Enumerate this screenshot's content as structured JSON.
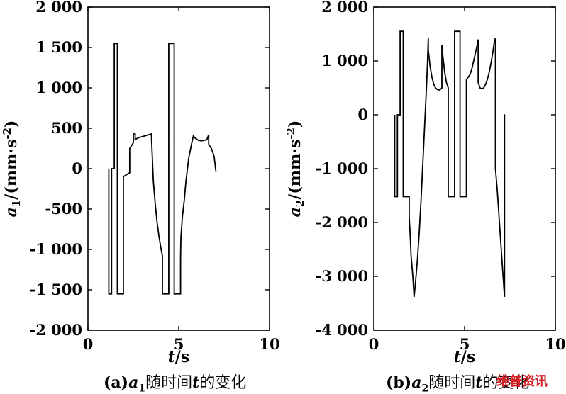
{
  "chart_data": [
    {
      "id": "a1",
      "type": "line",
      "ylabel": "a1/(mm·s-2)",
      "ylabel_parts": {
        "var": "a",
        "sub": "1",
        "unit": "/(mm·s",
        "exp": "-2",
        "close": ")"
      },
      "xlabel_parts": {
        "var": "t",
        "unit": "/s"
      },
      "xlim": [
        0,
        10
      ],
      "ylim": [
        -2000,
        2000
      ],
      "xticks": [
        0,
        5,
        10
      ],
      "xtick_labels": [
        "0",
        "5",
        "10"
      ],
      "yticks": [
        2000,
        1500,
        1000,
        500,
        0,
        -500,
        -1000,
        -1500,
        -2000
      ],
      "ytick_labels": [
        "2 000",
        "1 500",
        "1 000",
        "500",
        "0",
        "-500",
        "-1 000",
        "-1 500",
        "-2 000"
      ],
      "caption": {
        "prefix": "(a)",
        "var": "a",
        "sub": "1",
        "mid": "随时间",
        "tvar": "t",
        "suffix": "的变化"
      },
      "x": [
        1.15,
        1.15,
        1.3,
        1.3,
        1.45,
        1.45,
        1.62,
        1.62,
        1.95,
        1.95,
        2.3,
        2.3,
        2.5,
        2.5,
        2.6,
        2.6,
        2.75,
        2.9,
        3.05,
        3.2,
        3.35,
        3.5,
        3.5,
        3.6,
        3.7,
        3.8,
        3.9,
        4.0,
        4.05,
        4.1,
        4.1,
        4.45,
        4.45,
        4.75,
        4.75,
        5.1,
        5.1,
        5.12,
        5.2,
        5.3,
        5.4,
        5.55,
        5.7,
        5.82,
        5.82,
        5.95,
        6.1,
        6.25,
        6.4,
        6.55,
        6.65,
        6.65,
        6.8,
        6.95,
        7.05
      ],
      "y": [
        0,
        -1550,
        -1550,
        0,
        0,
        1550,
        1550,
        -1550,
        -1550,
        -100,
        -50,
        250,
        320,
        430,
        430,
        360,
        380,
        390,
        400,
        410,
        420,
        430,
        380,
        -150,
        -420,
        -650,
        -820,
        -960,
        -1020,
        -1080,
        -1550,
        -1550,
        1550,
        1550,
        -1550,
        -1550,
        -1100,
        -850,
        -600,
        -400,
        -150,
        130,
        300,
        420,
        400,
        370,
        350,
        345,
        350,
        360,
        420,
        300,
        250,
        150,
        -40
      ],
      "series_color": "#000000"
    },
    {
      "id": "a2",
      "type": "line",
      "ylabel": "a2/(mm·s-2)",
      "ylabel_parts": {
        "var": "a",
        "sub": "2",
        "unit": "/(mm·s",
        "exp": "-2",
        "close": ")"
      },
      "xlabel_parts": {
        "var": "t",
        "unit": "/s"
      },
      "xlim": [
        0,
        10
      ],
      "ylim": [
        -4000,
        2000
      ],
      "xticks": [
        0,
        5,
        10
      ],
      "xtick_labels": [
        "0",
        "5",
        "10"
      ],
      "yticks": [
        2000,
        1000,
        0,
        -1000,
        -2000,
        -3000,
        -4000
      ],
      "ytick_labels": [
        "2 000",
        "1 000",
        "0",
        "-1 000",
        "-2 000",
        "-3 000",
        "-4 000"
      ],
      "caption": {
        "prefix": "(b)",
        "var": "a",
        "sub": "2",
        "mid": "随时间",
        "tvar": "t",
        "suffix": "的变化"
      },
      "x": [
        1.15,
        1.15,
        1.3,
        1.3,
        1.45,
        1.45,
        1.62,
        1.62,
        1.95,
        1.95,
        2.0,
        2.05,
        2.15,
        2.22,
        2.3,
        2.4,
        2.5,
        2.6,
        2.7,
        2.8,
        2.9,
        2.95,
        3.0,
        3.0,
        3.1,
        3.2,
        3.3,
        3.4,
        3.5,
        3.6,
        3.7,
        3.75,
        3.75,
        3.8,
        3.9,
        4.0,
        4.1,
        4.1,
        4.45,
        4.45,
        4.75,
        4.75,
        5.1,
        5.1,
        5.2,
        5.3,
        5.4,
        5.5,
        5.6,
        5.7,
        5.75,
        5.75,
        5.85,
        5.95,
        6.05,
        6.15,
        6.25,
        6.35,
        6.45,
        6.55,
        6.65,
        6.7,
        6.7,
        6.8,
        6.9,
        7.0,
        7.1,
        7.2,
        7.2,
        7.22
      ],
      "y": [
        0,
        -1520,
        -1520,
        0,
        0,
        1550,
        1550,
        -1520,
        -1520,
        -1900,
        -2200,
        -2600,
        -3000,
        -3380,
        -3100,
        -2700,
        -2200,
        -1600,
        -900,
        -200,
        500,
        900,
        1420,
        1200,
        900,
        700,
        570,
        500,
        470,
        460,
        480,
        500,
        1300,
        1100,
        800,
        600,
        500,
        -1520,
        -1520,
        1550,
        1550,
        -1520,
        -1520,
        650,
        700,
        750,
        850,
        1000,
        1150,
        1300,
        1400,
        600,
        500,
        480,
        500,
        560,
        650,
        780,
        950,
        1150,
        1380,
        1420,
        -1000,
        -1400,
        -1900,
        -2400,
        -2900,
        -3380,
        0,
        0
      ],
      "series_color": "#000000"
    }
  ],
  "watermark": "维普资讯",
  "colors": {
    "line": "#000000",
    "axes": "#000000",
    "background": "#ffffff",
    "watermark": "#d42027"
  }
}
